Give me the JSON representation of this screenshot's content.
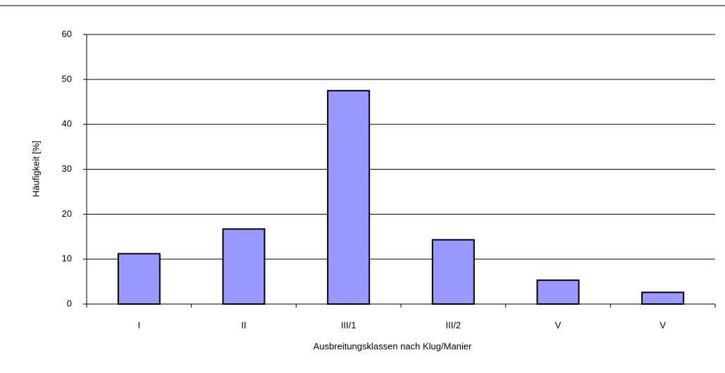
{
  "chart_data": {
    "type": "bar",
    "categories": [
      "I",
      "II",
      "III/1",
      "III/2",
      "V",
      "V"
    ],
    "values": [
      11.2,
      16.7,
      47.5,
      14.3,
      5.3,
      2.6
    ],
    "color": "#9999ff",
    "ylim": [
      0,
      60
    ],
    "yticks": [
      0,
      10,
      20,
      30,
      40,
      50,
      60
    ],
    "grid": true,
    "y_label": "Häufigkeit  [%]",
    "x_label": "Ausbreitungsklassen  nach Klug/Manier"
  }
}
